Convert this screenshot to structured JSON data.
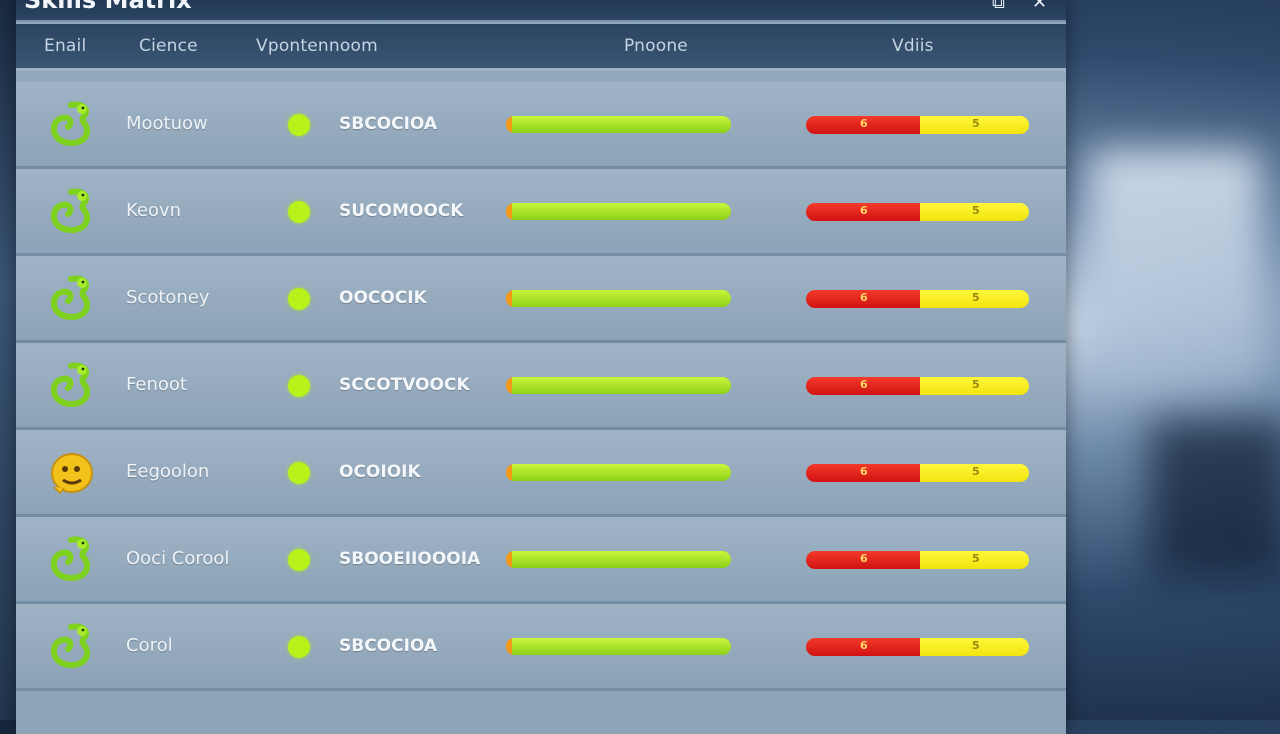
{
  "window": {
    "title": "Skills Matrix"
  },
  "header": {
    "columns": [
      "Enail",
      "Cience",
      "Vpontennoom",
      "Pnoone",
      "Vdiis"
    ]
  },
  "rows": [
    {
      "icon": "green-snake-icon",
      "name": "Mootuow",
      "status_color": "#b8f21b",
      "code": "SBCOCIOA",
      "progress": 1.0,
      "split_red": 0.51,
      "red_label": "6",
      "yellow_label": "5"
    },
    {
      "icon": "green-snake-icon",
      "name": "Keovn",
      "status_color": "#b8f21b",
      "code": "SUCOMOOCK",
      "progress": 1.0,
      "split_red": 0.51,
      "red_label": "6",
      "yellow_label": "5"
    },
    {
      "icon": "green-snake-icon",
      "name": "Scotoney",
      "status_color": "#b8f21b",
      "code": "OOCOCIK",
      "progress": 1.0,
      "split_red": 0.51,
      "red_label": "6",
      "yellow_label": "5"
    },
    {
      "icon": "green-snake-icon",
      "name": "Fenoot",
      "status_color": "#b8f21b",
      "code": "SCCOTVOOCK",
      "progress": 1.0,
      "split_red": 0.51,
      "red_label": "6",
      "yellow_label": "5"
    },
    {
      "icon": "yellow-face-icon",
      "name": "Eegoolon",
      "status_color": "#b8f21b",
      "code": "OCOIOIK",
      "progress": 1.0,
      "split_red": 0.51,
      "red_label": "6",
      "yellow_label": "5"
    },
    {
      "icon": "green-snake-icon",
      "name": "Ooci Corool",
      "status_color": "#b8f21b",
      "code": "SBOOEIIOOOIA",
      "progress": 1.0,
      "split_red": 0.51,
      "red_label": "6",
      "yellow_label": "5"
    },
    {
      "icon": "green-snake-icon",
      "name": "Corol",
      "status_color": "#b8f21b",
      "code": "SBCOCIOA",
      "progress": 1.0,
      "split_red": 0.51,
      "red_label": "6",
      "yellow_label": "5"
    }
  ]
}
